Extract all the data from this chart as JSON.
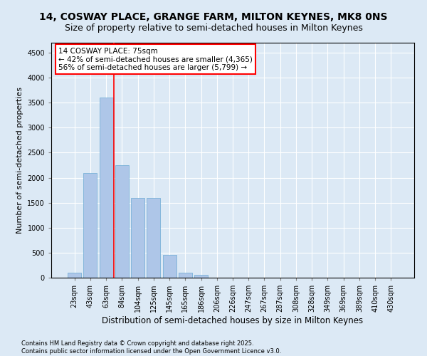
{
  "title": "14, COSWAY PLACE, GRANGE FARM, MILTON KEYNES, MK8 0NS",
  "subtitle": "Size of property relative to semi-detached houses in Milton Keynes",
  "xlabel": "Distribution of semi-detached houses by size in Milton Keynes",
  "ylabel": "Number of semi-detached properties",
  "footer": "Contains HM Land Registry data © Crown copyright and database right 2025.\nContains public sector information licensed under the Open Government Licence v3.0.",
  "categories": [
    "23sqm",
    "43sqm",
    "63sqm",
    "84sqm",
    "104sqm",
    "125sqm",
    "145sqm",
    "165sqm",
    "186sqm",
    "206sqm",
    "226sqm",
    "247sqm",
    "267sqm",
    "287sqm",
    "308sqm",
    "328sqm",
    "349sqm",
    "369sqm",
    "389sqm",
    "410sqm",
    "430sqm"
  ],
  "values": [
    100,
    2100,
    3600,
    2250,
    1600,
    1600,
    450,
    100,
    50,
    0,
    0,
    0,
    0,
    0,
    0,
    0,
    0,
    0,
    0,
    0,
    0
  ],
  "bar_color": "#aec6e8",
  "bar_edge_color": "#6aaad4",
  "vline_x": 2.5,
  "vline_color": "red",
  "annotation_title": "14 COSWAY PLACE: 75sqm",
  "annotation_line1": "← 42% of semi-detached houses are smaller (4,365)",
  "annotation_line2": "56% of semi-detached houses are larger (5,799) →",
  "ylim": [
    0,
    4700
  ],
  "yticks": [
    0,
    500,
    1000,
    1500,
    2000,
    2500,
    3000,
    3500,
    4000,
    4500
  ],
  "bg_color": "#dce9f5",
  "plot_bg_color": "#dce9f5",
  "grid_color": "white",
  "title_fontsize": 10,
  "subtitle_fontsize": 9,
  "tick_fontsize": 7,
  "ylabel_fontsize": 8,
  "xlabel_fontsize": 8.5,
  "footer_fontsize": 6,
  "ann_fontsize": 7.5
}
